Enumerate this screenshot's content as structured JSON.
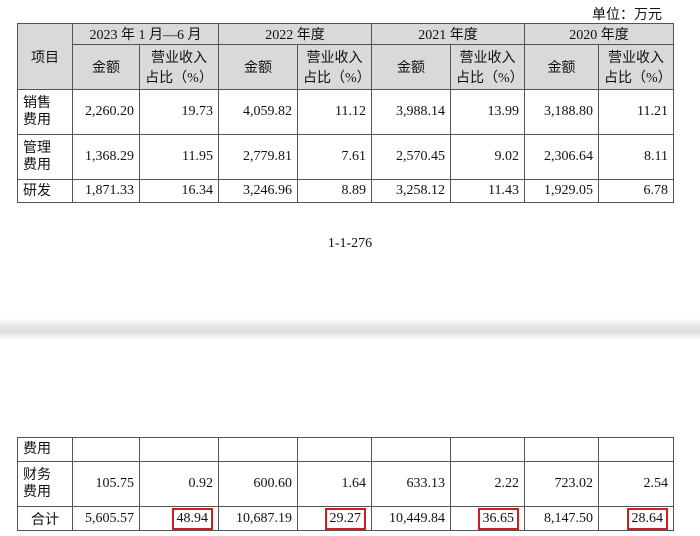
{
  "unit_label": "单位：万元",
  "header": {
    "item_label": "项目",
    "periods": [
      "2023 年 1 月—6 月",
      "2022 年度",
      "2021 年度",
      "2020 年度"
    ],
    "amount_label": "金额",
    "ratio_label_line1": "营业收入",
    "ratio_label_line2": "占比（%）"
  },
  "top_rows": [
    {
      "label_line1": "销售",
      "label_line2": "费用",
      "values": [
        "2,260.20",
        "19.73",
        "4,059.82",
        "11.12",
        "3,988.14",
        "13.99",
        "3,188.80",
        "11.21"
      ]
    },
    {
      "label_line1": "管理",
      "label_line2": "费用",
      "values": [
        "1,368.29",
        "11.95",
        "2,779.81",
        "7.61",
        "2,570.45",
        "9.02",
        "2,306.64",
        "8.11"
      ]
    },
    {
      "label_line1": "研发",
      "label_line2": "",
      "values": [
        "1,871.33",
        "16.34",
        "3,246.96",
        "8.89",
        "3,258.12",
        "11.43",
        "1,929.05",
        "6.78"
      ]
    }
  ],
  "page_number": "1-1-276",
  "bottom_rows": [
    {
      "label_line1": "费用",
      "label_line2": "",
      "values": [
        "",
        "",
        "",
        "",
        "",
        "",
        "",
        ""
      ]
    },
    {
      "label_line1": "财务",
      "label_line2": "费用",
      "values": [
        "105.75",
        "0.92",
        "600.60",
        "1.64",
        "633.13",
        "2.22",
        "723.02",
        "2.54"
      ]
    }
  ],
  "total_row": {
    "label": "合计",
    "values": [
      "5,605.57",
      "48.94",
      "10,687.19",
      "29.27",
      "10,449.84",
      "36.65",
      "8,147.50",
      "28.64"
    ]
  },
  "highlight_color": "#cc1e1e"
}
